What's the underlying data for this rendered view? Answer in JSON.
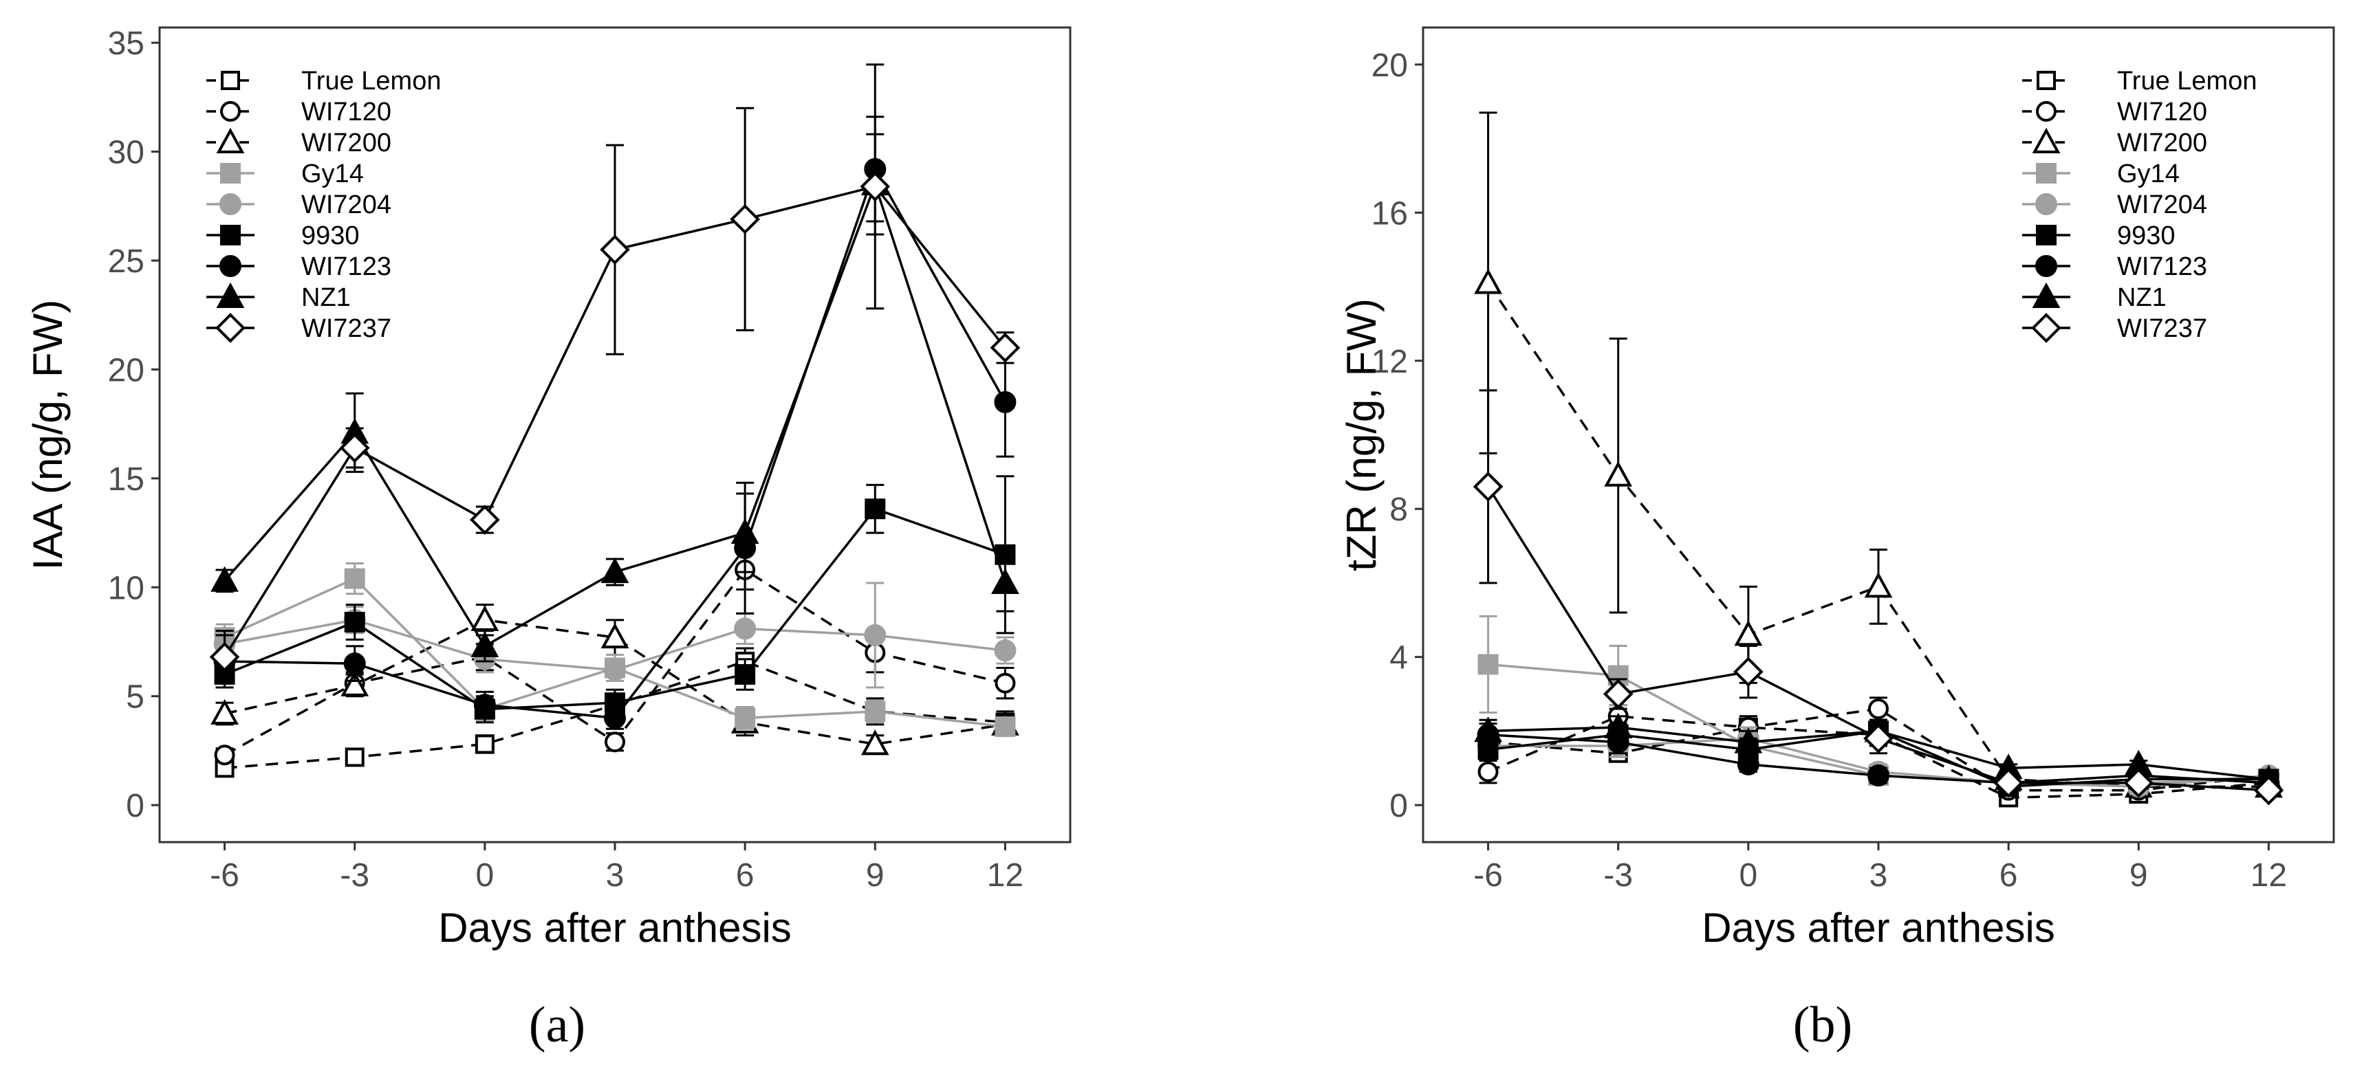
{
  "chart_data": [
    {
      "type": "line",
      "panel_label": "(a)",
      "xlabel": "Days after anthesis",
      "ylabel": "IAA (ng/g, FW)",
      "x": [
        -6,
        -3,
        0,
        3,
        6,
        9,
        12
      ],
      "x_tick_labels": [
        "-6",
        "-3",
        "0",
        "3",
        "6",
        "9",
        "12"
      ],
      "xlim": [
        -7.5,
        13.5
      ],
      "ylim": [
        -1.7,
        35.7
      ],
      "y_ticks": [
        0,
        5,
        10,
        15,
        20,
        25,
        30,
        35
      ],
      "y_tick_labels": [
        "0",
        "5",
        "10",
        "15",
        "20",
        "25",
        "30",
        "35"
      ],
      "legend_position": "top-left",
      "series": [
        {
          "name": "True Lemon",
          "marker": "square-open",
          "color": "#000000",
          "dash": true,
          "values": [
            1.7,
            2.2,
            2.8,
            4.6,
            6.6,
            4.3,
            3.8
          ],
          "errors": [
            0.3,
            0.3,
            0.4,
            0.5,
            0.6,
            0.6,
            0.5
          ]
        },
        {
          "name": "WI7120",
          "marker": "circle-open",
          "color": "#000000",
          "dash": true,
          "values": [
            2.3,
            5.6,
            6.8,
            2.9,
            10.8,
            7.0,
            5.6
          ],
          "errors": [
            0.3,
            0.5,
            0.6,
            0.4,
            0.9,
            0.9,
            0.7
          ]
        },
        {
          "name": "WI7200",
          "marker": "triangle-open",
          "color": "#000000",
          "dash": true,
          "values": [
            4.2,
            5.5,
            8.5,
            7.7,
            3.8,
            2.8,
            3.7
          ],
          "errors": [
            0.5,
            0.5,
            0.7,
            0.8,
            0.6,
            0.4,
            0.4
          ]
        },
        {
          "name": "Gy14",
          "marker": "square-filled",
          "color": "#a0a0a0",
          "dash": false,
          "values": [
            7.7,
            10.4,
            4.4,
            6.3,
            4.0,
            4.3,
            3.6
          ],
          "errors": [
            0.6,
            0.7,
            0.5,
            0.6,
            0.5,
            0.5,
            0.4
          ]
        },
        {
          "name": "WI7204",
          "marker": "circle-filled",
          "color": "#a0a0a0",
          "dash": false,
          "values": [
            7.4,
            8.5,
            6.7,
            6.2,
            8.1,
            7.8,
            7.1
          ],
          "errors": [
            0.5,
            0.6,
            0.6,
            0.5,
            0.7,
            2.4,
            0.6
          ]
        },
        {
          "name": "9930",
          "marker": "square-filled",
          "color": "#000000",
          "dash": false,
          "values": [
            6.0,
            8.4,
            4.4,
            4.7,
            6.0,
            13.6,
            11.5
          ],
          "errors": [
            0.6,
            0.8,
            0.6,
            0.6,
            0.7,
            1.1,
            3.6
          ]
        },
        {
          "name": "WI7123",
          "marker": "circle-filled",
          "color": "#000000",
          "dash": false,
          "values": [
            6.6,
            6.5,
            4.6,
            4.0,
            11.8,
            29.2,
            18.5
          ],
          "errors": [
            1.2,
            0.8,
            0.6,
            0.5,
            3.0,
            2.4,
            2.5
          ]
        },
        {
          "name": "NZ1",
          "marker": "triangle-filled",
          "color": "#000000",
          "dash": false,
          "values": [
            10.3,
            17.1,
            7.3,
            10.7,
            12.5,
            28.5,
            10.2
          ],
          "errors": [
            0.5,
            1.8,
            0.7,
            0.6,
            1.8,
            2.3,
            1.3
          ]
        },
        {
          "name": "WI7237",
          "marker": "diamond-open",
          "color": "#000000",
          "dash": false,
          "values": [
            6.8,
            16.4,
            13.1,
            25.5,
            26.9,
            28.4,
            21.0
          ],
          "errors": [
            1.2,
            0.9,
            0.6,
            4.8,
            5.1,
            5.6,
            0.7
          ]
        }
      ]
    },
    {
      "type": "line",
      "panel_label": "(b)",
      "xlabel": "Days after anthesis",
      "ylabel": "tZR (ng/g, FW)",
      "x": [
        -6,
        -3,
        0,
        3,
        6,
        9,
        12
      ],
      "x_tick_labels": [
        "-6",
        "-3",
        "0",
        "3",
        "6",
        "9",
        "12"
      ],
      "xlim": [
        -7.5,
        13.5
      ],
      "ylim": [
        -1.0,
        21.0
      ],
      "y_ticks": [
        0,
        4,
        8,
        12,
        16,
        20
      ],
      "y_tick_labels": [
        "0",
        "4",
        "8",
        "12",
        "16",
        "20"
      ],
      "legend_position": "top-right",
      "series": [
        {
          "name": "True Lemon",
          "marker": "square-open",
          "color": "#000000",
          "dash": true,
          "values": [
            1.7,
            1.4,
            2.1,
            1.9,
            0.2,
            0.3,
            0.6
          ],
          "errors": [
            0.3,
            0.2,
            0.3,
            0.3,
            0.1,
            0.1,
            0.1
          ]
        },
        {
          "name": "WI7120",
          "marker": "circle-open",
          "color": "#000000",
          "dash": true,
          "values": [
            0.9,
            2.4,
            2.1,
            2.6,
            0.4,
            0.4,
            0.8
          ],
          "errors": [
            0.3,
            0.3,
            0.3,
            0.3,
            0.1,
            0.1,
            0.1
          ]
        },
        {
          "name": "WI7200",
          "marker": "triangle-open",
          "color": "#000000",
          "dash": true,
          "values": [
            14.1,
            8.9,
            4.6,
            5.9,
            0.7,
            0.5,
            0.5
          ],
          "errors": [
            4.6,
            3.7,
            1.3,
            1.0,
            0.1,
            0.1,
            0.1
          ]
        },
        {
          "name": "Gy14",
          "marker": "square-filled",
          "color": "#a0a0a0",
          "dash": false,
          "values": [
            3.8,
            3.5,
            1.6,
            0.8,
            0.6,
            0.6,
            0.7
          ],
          "errors": [
            1.3,
            0.8,
            0.3,
            0.2,
            0.1,
            0.1,
            0.1
          ]
        },
        {
          "name": "WI7204",
          "marker": "circle-filled",
          "color": "#a0a0a0",
          "dash": false,
          "values": [
            1.6,
            1.6,
            1.8,
            0.9,
            0.6,
            0.5,
            0.8
          ],
          "errors": [
            0.3,
            0.3,
            0.3,
            0.2,
            0.1,
            0.1,
            0.1
          ]
        },
        {
          "name": "9930",
          "marker": "square-filled",
          "color": "#000000",
          "dash": false,
          "values": [
            1.5,
            1.9,
            1.5,
            2.0,
            0.5,
            0.7,
            0.7
          ],
          "errors": [
            0.3,
            0.3,
            0.3,
            0.3,
            0.1,
            0.1,
            0.1
          ]
        },
        {
          "name": "WI7123",
          "marker": "circle-filled",
          "color": "#000000",
          "dash": false,
          "values": [
            1.9,
            1.7,
            1.1,
            0.8,
            0.6,
            0.8,
            0.6
          ],
          "errors": [
            0.3,
            0.3,
            0.2,
            0.2,
            0.1,
            0.1,
            0.1
          ]
        },
        {
          "name": "NZ1",
          "marker": "triangle-filled",
          "color": "#000000",
          "dash": false,
          "values": [
            2.0,
            2.1,
            1.7,
            2.0,
            1.0,
            1.1,
            0.7
          ],
          "errors": [
            0.3,
            0.3,
            0.3,
            0.3,
            0.1,
            0.1,
            0.1
          ]
        },
        {
          "name": "WI7237",
          "marker": "diamond-open",
          "color": "#000000",
          "dash": false,
          "values": [
            8.6,
            3.0,
            3.6,
            1.8,
            0.6,
            0.6,
            0.4
          ],
          "errors": [
            2.6,
            0.4,
            0.7,
            0.4,
            0.1,
            0.1,
            0.1
          ]
        }
      ]
    }
  ]
}
